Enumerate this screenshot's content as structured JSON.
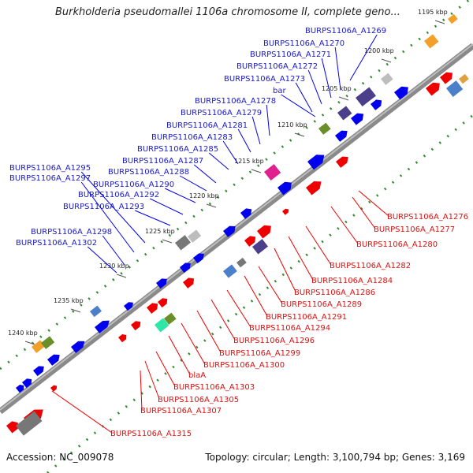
{
  "title": "Burkholderia pseudomallei 1106a chromosome II, complete geno...",
  "footer": {
    "accession": "Accession: NC_009078",
    "summary": "Topology: circular; Length: 3,100,794 bp; Genes: 3,169"
  },
  "colors": {
    "backbone": "#7a7a7a",
    "forward": "#0000ee",
    "reverse": "#ee0000",
    "ruler": "#2e8b2e",
    "forward_label": "#1a1ac8",
    "reverse_label": "#dd1111"
  },
  "diagram": {
    "type": "circular genome map (zoomed segment)",
    "ticks": [
      "1195 kbp",
      "1200 kbp",
      "1205 kbp",
      "1210 kbp",
      "1215 kbp",
      "1220 kbp",
      "1225 kbp",
      "1230 kbp",
      "1235 kbp",
      "1240 kbp"
    ],
    "forward_labels": [
      "BURPS1106A_A1269",
      "BURPS1106A_A1270",
      "BURPS1106A_A1271",
      "BURPS1106A_A1272",
      "BURPS1106A_A1273",
      "bar",
      "BURPS1106A_A1278",
      "BURPS1106A_A1279",
      "BURPS1106A_A1281",
      "BURPS1106A_A1283",
      "BURPS1106A_A1285",
      "BURPS1106A_A1287",
      "BURPS1106A_A1288",
      "BURPS1106A_A1290",
      "BURPS1106A_A1292",
      "BURPS1106A_A1293",
      "BURPS1106A_A1295",
      "BURPS1106A_A1297",
      "BURPS1106A_A1298",
      "BURPS1106A_A1302"
    ],
    "reverse_labels": [
      "BURPS1106A_A1276",
      "BURPS1106A_A1277",
      "BURPS1106A_A1280",
      "BURPS1106A_A1282",
      "BURPS1106A_A1284",
      "BURPS1106A_A1286",
      "BURPS1106A_A1289",
      "BURPS1106A_A1291",
      "BURPS1106A_A1294",
      "BURPS1106A_A1296",
      "BURPS1106A_A1299",
      "BURPS1106A_A1300",
      "blaA",
      "BURPS1106A_A1303",
      "BURPS1106A_A1305",
      "BURPS1106A_A1307",
      "BURPS1106A_A1315"
    ]
  }
}
